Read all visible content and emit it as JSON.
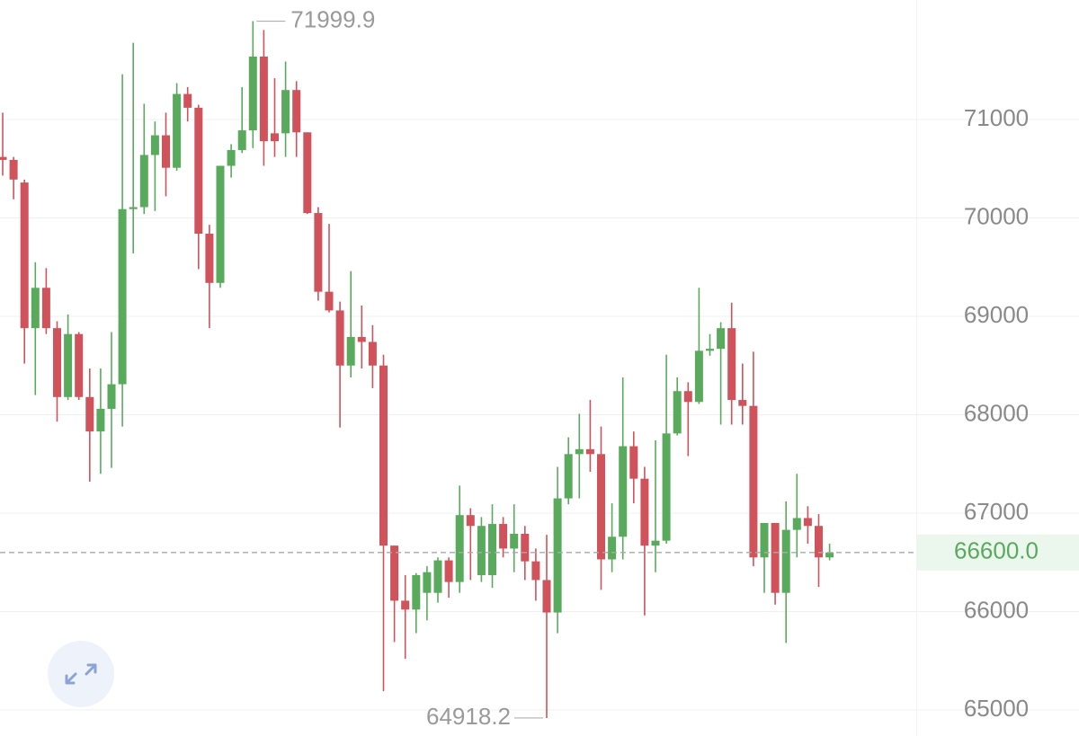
{
  "chart_data": {
    "type": "candlestick",
    "ylim": [
      64735,
      72215
    ],
    "yticks": [
      65000,
      66000,
      67000,
      68000,
      69000,
      70000,
      71000
    ],
    "grid": true,
    "up_color": "#5aaa5e",
    "down_color": "#d0535c",
    "annotations": [
      {
        "kind": "high",
        "value": 71999.9,
        "label": "71999.9"
      },
      {
        "kind": "low",
        "value": 64918.2,
        "label": "64918.2"
      }
    ],
    "last_price": {
      "value": 66600,
      "label": "66600.0"
    },
    "open": [
      70620,
      70590,
      70360,
      68880,
      69290,
      68880,
      68180,
      68820,
      68180,
      67830,
      68060,
      68310,
      70090,
      70110,
      70640,
      70840,
      70510,
      71260,
      71120,
      69840,
      69340,
      70530,
      70690,
      70890,
      71640,
      70860,
      70860,
      71300,
      70870,
      70050,
      69250,
      69060,
      68500,
      68790,
      68740,
      68500,
      66670,
      66110,
      66020,
      66190,
      66190,
      66520,
      66300,
      66980,
      66370,
      66370,
      66890,
      66640,
      66790,
      66510,
      66320,
      65990,
      67150,
      67600,
      67650,
      67600,
      66530,
      66760,
      67680,
      67350,
      66670,
      66720,
      67810,
      68240,
      68130,
      68650,
      68670,
      68880,
      68150,
      68090,
      66550,
      66900,
      66190,
      66830,
      66950,
      66870,
      66550
    ],
    "high": [
      71070,
      70620,
      70390,
      69550,
      69490,
      68950,
      69020,
      68840,
      68470,
      68470,
      68840,
      71460,
      71780,
      71160,
      70980,
      71070,
      71370,
      71330,
      71150,
      69930,
      70530,
      70750,
      71330,
      71999.9,
      71910,
      71420,
      71590,
      71390,
      70870,
      70110,
      69940,
      69150,
      69460,
      69110,
      68910,
      68610,
      66670,
      66370,
      66390,
      66460,
      66550,
      66550,
      67280,
      67050,
      66960,
      67090,
      66960,
      67090,
      66870,
      66640,
      66780,
      67470,
      67770,
      68010,
      68150,
      67880,
      67100,
      68380,
      67830,
      67470,
      67740,
      68610,
      68380,
      68330,
      69290,
      68820,
      68940,
      69140,
      68520,
      68640,
      66900,
      66900,
      67120,
      67400,
      67070,
      66990,
      66690
    ],
    "low": [
      70430,
      70190,
      68520,
      68200,
      68820,
      67930,
      68150,
      68150,
      67320,
      67400,
      67460,
      67880,
      69640,
      70040,
      70070,
      70220,
      70480,
      70980,
      69480,
      68880,
      69290,
      70410,
      70660,
      70710,
      70530,
      70620,
      70620,
      70620,
      70040,
      69160,
      69040,
      67870,
      68380,
      68470,
      68270,
      65190,
      65690,
      65520,
      65780,
      65910,
      66090,
      66140,
      66190,
      66320,
      66300,
      66240,
      66550,
      66400,
      66320,
      66110,
      64918.2,
      65780,
      67090,
      67150,
      67420,
      66220,
      66400,
      66530,
      67100,
      65960,
      66400,
      66690,
      67790,
      67580,
      68110,
      68600,
      67900,
      67900,
      67900,
      66460,
      66190,
      66070,
      65680,
      66550,
      66690,
      66250,
      66520
    ],
    "close": [
      70590,
      70390,
      68880,
      69290,
      68880,
      68180,
      68820,
      68180,
      67830,
      68060,
      68310,
      70090,
      70110,
      70640,
      70840,
      70510,
      71260,
      71120,
      69840,
      69340,
      70530,
      70690,
      70890,
      71640,
      70780,
      70780,
      71300,
      70870,
      70050,
      69250,
      69060,
      68500,
      68790,
      68740,
      68500,
      66670,
      66110,
      66020,
      66370,
      66400,
      66520,
      66300,
      66980,
      66870,
      66870,
      66890,
      66640,
      66790,
      66510,
      66320,
      65990,
      67150,
      67600,
      67650,
      67600,
      66530,
      66760,
      67680,
      67350,
      66670,
      66720,
      67810,
      68240,
      68130,
      68650,
      68670,
      68880,
      68150,
      68090,
      66550,
      66900,
      66190,
      66830,
      66950,
      66870,
      66550,
      66600
    ]
  }
}
